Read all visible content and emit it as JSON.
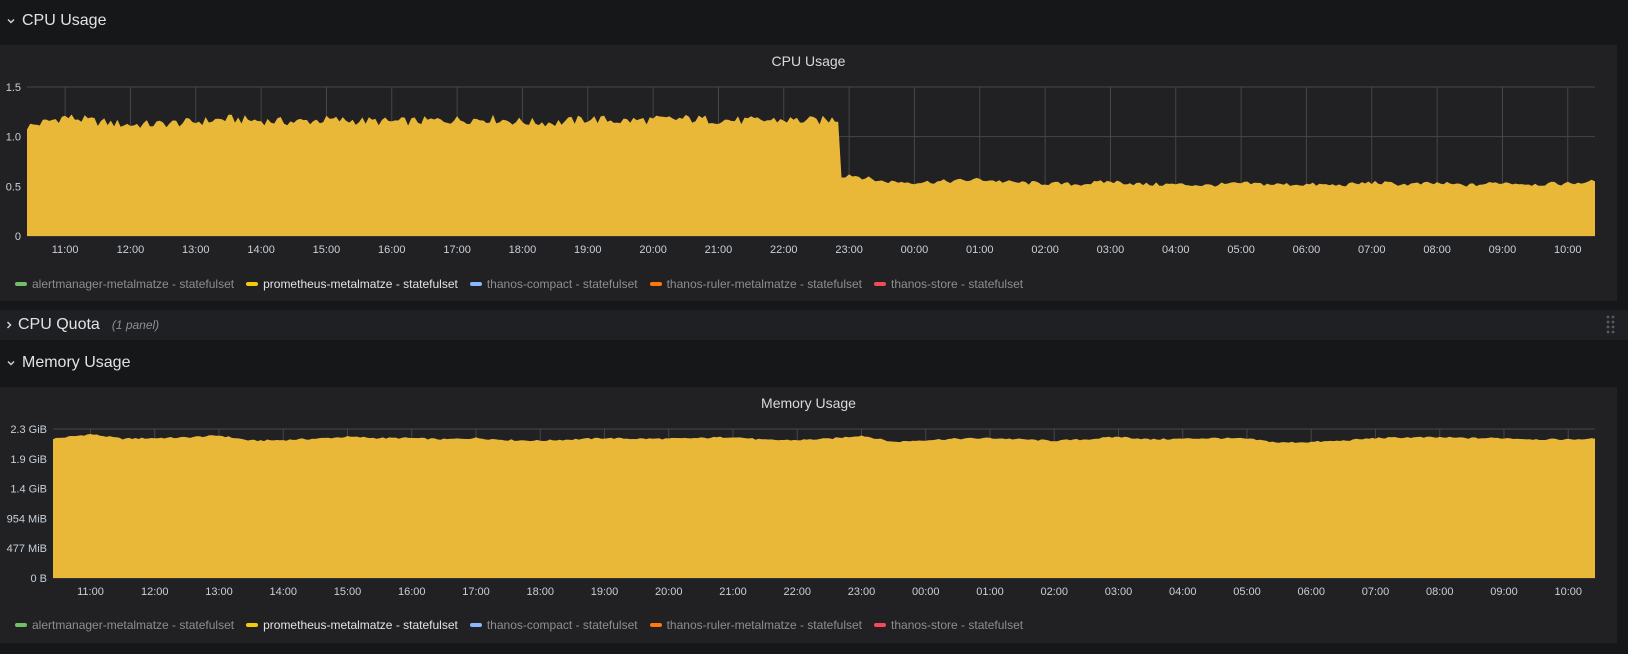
{
  "rows": {
    "cpu_usage": {
      "title": "CPU Usage",
      "chevron_icon": "chevron-down"
    },
    "cpu_quota": {
      "title": "CPU Quota",
      "subtitle": "(1 panel)",
      "chevron_icon": "chevron-right"
    },
    "memory_usage": {
      "title": "Memory Usage",
      "chevron_icon": "chevron-down"
    }
  },
  "legend": [
    {
      "name": "alertmanager-metalmatze - statefulset",
      "color": "#73bf69",
      "active": false
    },
    {
      "name": "prometheus-metalmatze - statefulset",
      "color": "#f2cc0c",
      "active": true
    },
    {
      "name": "thanos-compact - statefulset",
      "color": "#8ab8ff",
      "active": false
    },
    {
      "name": "thanos-ruler-metalmatze - statefulset",
      "color": "#ff780a",
      "active": false
    },
    {
      "name": "thanos-store - statefulset",
      "color": "#f2495c",
      "active": false
    }
  ],
  "colors": {
    "fill": "#eab839",
    "grid": "#464648",
    "background": "#212124",
    "page": "#161719"
  },
  "chart_data": [
    {
      "type": "area",
      "title": "CPU Usage",
      "x_ticks": [
        "11:00",
        "12:00",
        "13:00",
        "14:00",
        "15:00",
        "16:00",
        "17:00",
        "18:00",
        "19:00",
        "20:00",
        "21:00",
        "22:00",
        "23:00",
        "00:00",
        "01:00",
        "02:00",
        "03:00",
        "04:00",
        "05:00",
        "06:00",
        "07:00",
        "08:00",
        "09:00",
        "10:00"
      ],
      "x_range": [
        "10:25",
        "10:25"
      ],
      "y_ticks": [
        "0",
        "0.5",
        "1.0",
        "1.5"
      ],
      "ylim": [
        0,
        1.5
      ],
      "grid": true,
      "series": [
        {
          "name": "prometheus-metalmatze - statefulset",
          "color": "#eab839",
          "x": [
            "10:25",
            "11:00",
            "11:30",
            "12:00",
            "12:30",
            "13:00",
            "13:30",
            "14:00",
            "14:30",
            "15:00",
            "15:30",
            "16:00",
            "16:30",
            "17:00",
            "17:30",
            "18:00",
            "18:30",
            "19:00",
            "19:30",
            "20:00",
            "20:30",
            "21:00",
            "21:30",
            "22:00",
            "22:30",
            "22:50",
            "22:53",
            "23:00",
            "23:30",
            "00:00",
            "00:30",
            "01:00",
            "01:30",
            "02:00",
            "02:30",
            "03:00",
            "03:30",
            "04:00",
            "04:30",
            "05:00",
            "05:30",
            "06:00",
            "06:30",
            "07:00",
            "07:30",
            "08:00",
            "08:30",
            "09:00",
            "09:30",
            "10:00",
            "10:25"
          ],
          "values": [
            1.1,
            1.2,
            1.15,
            1.12,
            1.13,
            1.15,
            1.18,
            1.16,
            1.15,
            1.17,
            1.16,
            1.15,
            1.16,
            1.17,
            1.18,
            1.15,
            1.14,
            1.18,
            1.16,
            1.17,
            1.18,
            1.17,
            1.16,
            1.17,
            1.16,
            1.18,
            0.6,
            0.62,
            0.55,
            0.54,
            0.55,
            0.57,
            0.54,
            0.53,
            0.52,
            0.55,
            0.52,
            0.52,
            0.51,
            0.53,
            0.52,
            0.52,
            0.51,
            0.54,
            0.52,
            0.53,
            0.51,
            0.54,
            0.52,
            0.53,
            0.55
          ]
        }
      ]
    },
    {
      "type": "area",
      "title": "Memory Usage",
      "x_ticks": [
        "11:00",
        "12:00",
        "13:00",
        "14:00",
        "15:00",
        "16:00",
        "17:00",
        "18:00",
        "19:00",
        "20:00",
        "21:00",
        "22:00",
        "23:00",
        "00:00",
        "01:00",
        "02:00",
        "03:00",
        "04:00",
        "05:00",
        "06:00",
        "07:00",
        "08:00",
        "09:00",
        "10:00"
      ],
      "x_range": [
        "10:25",
        "10:25"
      ],
      "y_ticks": [
        "0 B",
        "477 MiB",
        "954 MiB",
        "1.4 GiB",
        "1.9 GiB",
        "2.3 GiB"
      ],
      "ylim": [
        0,
        2.3
      ],
      "grid": true,
      "series": [
        {
          "name": "prometheus-metalmatze - statefulset",
          "color": "#eab839",
          "x": [
            "10:25",
            "11:00",
            "11:30",
            "12:00",
            "12:30",
            "13:00",
            "13:30",
            "14:00",
            "14:30",
            "15:00",
            "15:30",
            "16:00",
            "16:30",
            "17:00",
            "17:30",
            "18:00",
            "18:30",
            "19:00",
            "19:30",
            "20:00",
            "20:30",
            "21:00",
            "21:30",
            "22:00",
            "22:30",
            "23:00",
            "23:30",
            "00:00",
            "00:30",
            "01:00",
            "01:30",
            "02:00",
            "02:30",
            "03:00",
            "03:30",
            "04:00",
            "04:30",
            "05:00",
            "05:30",
            "06:00",
            "06:30",
            "07:00",
            "07:30",
            "08:00",
            "08:30",
            "09:00",
            "09:30",
            "10:00",
            "10:25"
          ],
          "values": [
            2.15,
            2.22,
            2.15,
            2.16,
            2.17,
            2.2,
            2.12,
            2.13,
            2.15,
            2.18,
            2.16,
            2.16,
            2.14,
            2.16,
            2.13,
            2.12,
            2.14,
            2.16,
            2.15,
            2.15,
            2.16,
            2.18,
            2.13,
            2.13,
            2.15,
            2.2,
            2.1,
            2.13,
            2.15,
            2.16,
            2.14,
            2.12,
            2.14,
            2.18,
            2.14,
            2.15,
            2.16,
            2.15,
            2.09,
            2.1,
            2.12,
            2.16,
            2.17,
            2.17,
            2.16,
            2.16,
            2.14,
            2.14,
            2.15
          ]
        }
      ]
    }
  ]
}
